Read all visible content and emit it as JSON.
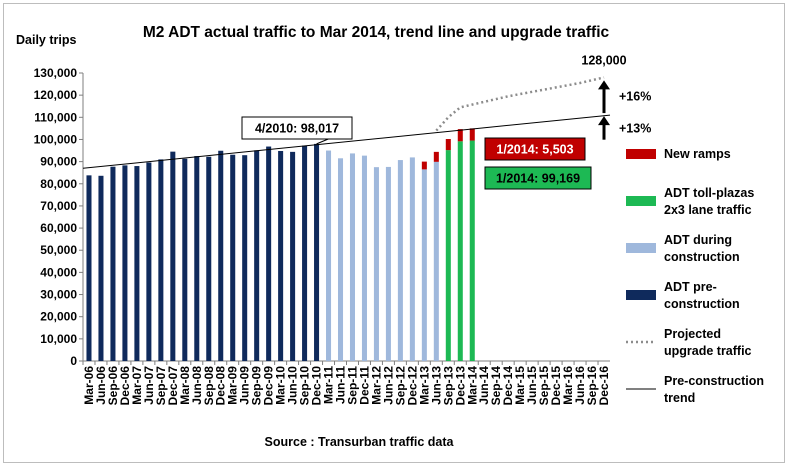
{
  "chart_data": {
    "type": "bar",
    "title": "M2 ADT actual traffic to Mar 2014, trend line and upgrade traffic",
    "ylabel": "Daily trips",
    "xlabel": "",
    "source": "Source : Transurban traffic data",
    "ylim": [
      0,
      130000
    ],
    "ytick_step": 10000,
    "ytick_labels": [
      "0",
      "10,000",
      "20,000",
      "30,000",
      "40,000",
      "50,000",
      "60,000",
      "70,000",
      "80,000",
      "90,000",
      "100,000",
      "110,000",
      "120,000",
      "130,000"
    ],
    "categories": [
      "Mar-06",
      "Jun-06",
      "Sep-06",
      "Dec-06",
      "Mar-07",
      "Jun-07",
      "Sep-07",
      "Dec-07",
      "Mar-08",
      "Jun-08",
      "Sep-08",
      "Dec-08",
      "Mar-09",
      "Jun-09",
      "Sep-09",
      "Dec-09",
      "Mar-10",
      "Jun-10",
      "Sep-10",
      "Dec-10",
      "Mar-11",
      "Jun-11",
      "Sep-11",
      "Dec-11",
      "Mar-12",
      "Jun-12",
      "Sep-12",
      "Dec-12",
      "Mar-13",
      "Jun-13",
      "Sep-13",
      "Dec-13",
      "Mar-14",
      "Jun-14",
      "Sep-14",
      "Dec-14",
      "Mar-15",
      "Jun-15",
      "Sep-15",
      "Dec-15",
      "Mar-16",
      "Jun-16",
      "Sep-16",
      "Dec-16"
    ],
    "series": [
      {
        "name": "ADT pre-construction",
        "color": "#0f2a5c",
        "kind": "bar",
        "values": [
          83800,
          83600,
          87700,
          88300,
          88000,
          89600,
          91000,
          94500,
          91300,
          92500,
          92200,
          94900,
          93100,
          92900,
          95100,
          96800,
          94800,
          94400,
          97200,
          98000,
          null,
          null,
          null,
          null,
          null,
          null,
          null,
          null,
          null,
          null,
          null,
          null,
          null,
          null,
          null,
          null,
          null,
          null,
          null,
          null,
          null,
          null,
          null,
          null
        ]
      },
      {
        "name": "ADT during construction",
        "color": "#9fb8dc",
        "kind": "bar",
        "values": [
          null,
          null,
          null,
          null,
          null,
          null,
          null,
          null,
          null,
          null,
          null,
          null,
          null,
          null,
          null,
          null,
          null,
          null,
          null,
          null,
          95000,
          91500,
          93700,
          92700,
          87500,
          87600,
          90700,
          91900,
          86500,
          89900,
          null,
          null,
          null,
          null,
          null,
          null,
          null,
          null,
          null,
          null,
          null,
          null,
          null,
          null
        ]
      },
      {
        "name": "ADT toll-plazas 2x3 lane traffic",
        "color": "#1db954",
        "kind": "bar",
        "values": [
          null,
          null,
          null,
          null,
          null,
          null,
          null,
          null,
          null,
          null,
          null,
          null,
          null,
          null,
          null,
          null,
          null,
          null,
          null,
          null,
          null,
          null,
          null,
          null,
          null,
          null,
          null,
          null,
          null,
          null,
          95200,
          99169,
          99500,
          null,
          null,
          null,
          null,
          null,
          null,
          null,
          null,
          null,
          null,
          null
        ]
      },
      {
        "name": "New ramps",
        "color": "#c00000",
        "kind": "stack",
        "values": [
          null,
          null,
          null,
          null,
          null,
          null,
          null,
          null,
          null,
          null,
          null,
          null,
          null,
          null,
          null,
          null,
          null,
          null,
          null,
          null,
          null,
          null,
          null,
          null,
          null,
          null,
          null,
          null,
          3500,
          4500,
          5000,
          5503,
          5500,
          null,
          null,
          null,
          null,
          null,
          null,
          null,
          null,
          null,
          null,
          null
        ]
      },
      {
        "name": "Projected upgrade traffic",
        "color": "#8c8c8c",
        "kind": "dotted-line",
        "x": [
          29,
          30,
          31,
          33,
          35,
          37,
          39,
          41,
          43
        ],
        "values": [
          104000,
          110000,
          114500,
          117000,
          119500,
          121500,
          123500,
          125500,
          128000
        ]
      },
      {
        "name": "Pre-construction trend",
        "color": "#000000",
        "kind": "line",
        "x": [
          0,
          43
        ],
        "values": [
          87000,
          111000
        ]
      }
    ],
    "annotations": [
      {
        "text": "4/2010: 98,017",
        "style": "box-white"
      },
      {
        "text": "1/2014: 5,503",
        "style": "box-red"
      },
      {
        "text": "1/2014: 99,169",
        "style": "box-green"
      },
      {
        "text": "128,000",
        "style": "plain"
      },
      {
        "text": "+16%",
        "style": "plain"
      },
      {
        "text": "+13%",
        "style": "plain"
      }
    ],
    "legend": [
      "New ramps",
      "ADT toll-plazas 2x3 lane traffic",
      "ADT during construction",
      "ADT pre-construction",
      "Projected upgrade traffic",
      "Pre-construction trend"
    ],
    "legend_lines": [
      [
        "New ramps"
      ],
      [
        "ADT toll-plazas",
        "2x3 lane traffic"
      ],
      [
        "ADT during",
        "construction"
      ],
      [
        "ADT pre-",
        "construction"
      ],
      [
        "Projected",
        "upgrade traffic"
      ],
      [
        "Pre-construction",
        "trend"
      ]
    ],
    "legend_position": "right",
    "grid": false
  }
}
